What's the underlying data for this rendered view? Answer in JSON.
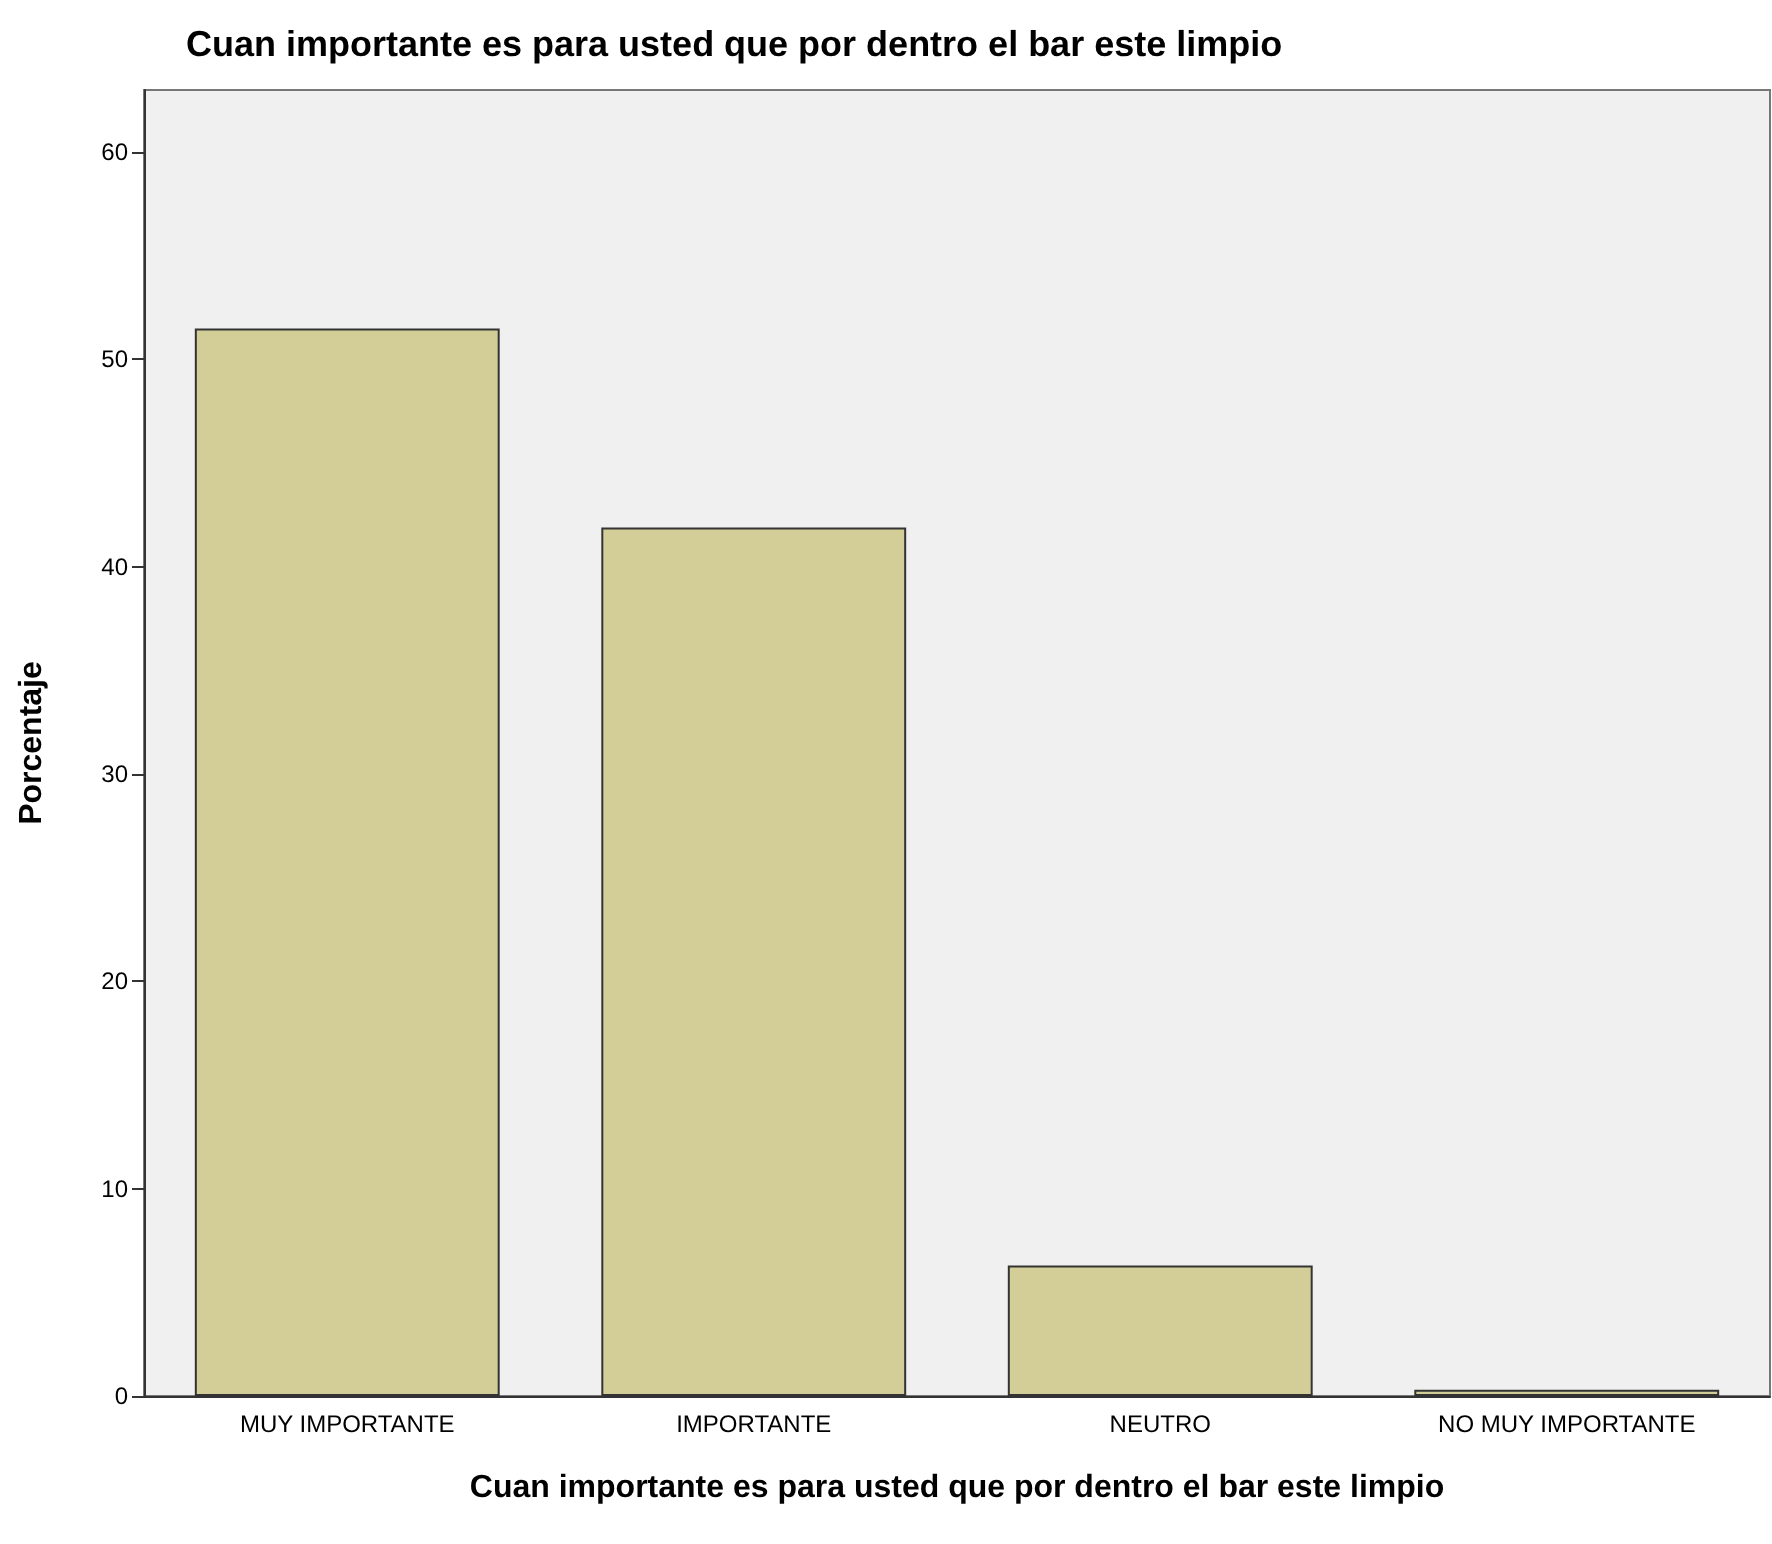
{
  "chart_data": {
    "type": "bar",
    "title": "Cuan importante es para usted que por dentro el bar este limpio",
    "xlabel": "Cuan importante es para usted que por dentro el bar este limpio",
    "ylabel": "Porcentaje",
    "categories": [
      "MUY IMPORTANTE",
      "IMPORTANTE",
      "NEUTRO",
      "NO MUY IMPORTANTE"
    ],
    "values": [
      51.5,
      41.9,
      6.3,
      0.3
    ],
    "color": "#d3ce97",
    "ylim": [
      0,
      63
    ],
    "yticks": [
      0,
      10,
      20,
      30,
      40,
      50,
      60
    ],
    "grid": false
  }
}
